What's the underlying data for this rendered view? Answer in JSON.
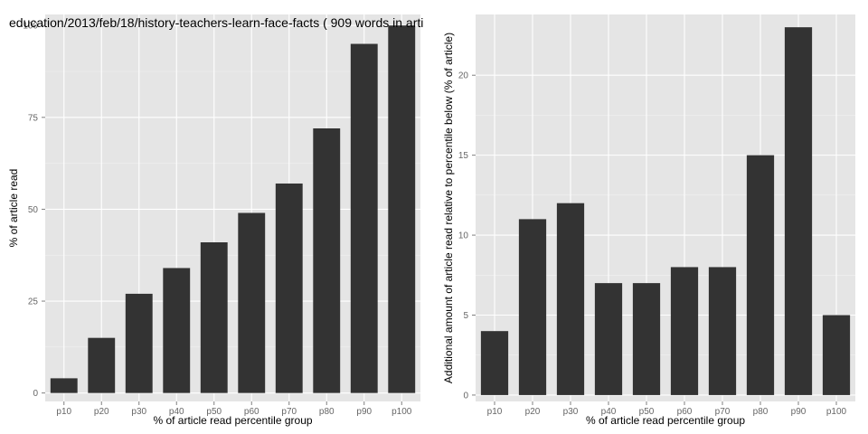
{
  "title": "education/2013/feb/18/history-teachers-learn-face-facts ( 909 words in arti",
  "colors": {
    "panel_bg": "#e5e5e5",
    "grid_major": "#ffffff",
    "grid_minor": "#f2f2f2",
    "bar": "#333333",
    "tick_label": "#666666"
  },
  "chart_data": [
    {
      "type": "bar",
      "categories": [
        "p10",
        "p20",
        "p30",
        "p40",
        "p50",
        "p60",
        "p70",
        "p80",
        "p90",
        "p100"
      ],
      "values": [
        4,
        15,
        27,
        34,
        41,
        49,
        57,
        72,
        95,
        100
      ],
      "xlabel": "% of article read percentile group",
      "ylabel": "% of article read",
      "ylim": [
        -2.3,
        103
      ],
      "yticks": [
        0,
        25,
        50,
        75,
        100
      ],
      "grid": true
    },
    {
      "type": "bar",
      "categories": [
        "p10",
        "p20",
        "p30",
        "p40",
        "p50",
        "p60",
        "p70",
        "p80",
        "p90",
        "p100"
      ],
      "values": [
        4,
        11,
        12,
        7,
        7,
        8,
        8,
        15,
        23,
        5
      ],
      "xlabel": "% of article read percentile group",
      "ylabel": "Additional amount of article read relative to percentile below (% of article)",
      "ylim": [
        -0.4,
        23.8
      ],
      "yticks": [
        0,
        5,
        10,
        15,
        20
      ],
      "grid": true
    }
  ]
}
